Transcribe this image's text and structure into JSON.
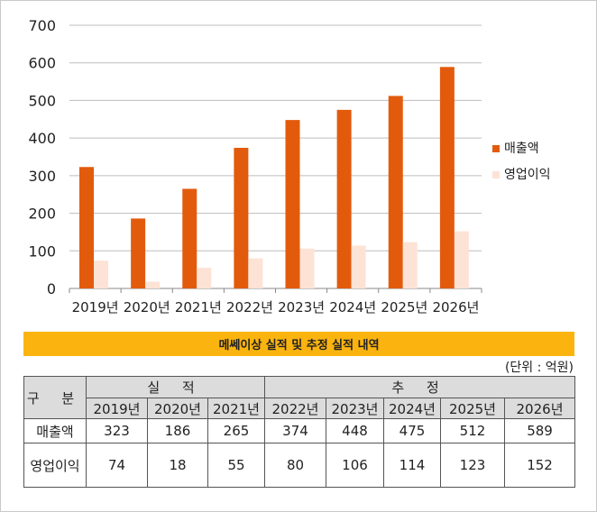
{
  "chart_data": {
    "type": "bar",
    "categories": [
      "2019년",
      "2020년",
      "2021년",
      "2022년",
      "2023년",
      "2024년",
      "2025년",
      "2026년"
    ],
    "series": [
      {
        "name": "매출액",
        "color": "#e25b0d",
        "values": [
          323,
          186,
          265,
          374,
          448,
          475,
          512,
          589
        ]
      },
      {
        "name": "영업이익",
        "color": "#fde3d6",
        "values": [
          74,
          18,
          55,
          80,
          106,
          114,
          123,
          152
        ]
      }
    ],
    "yticks": [
      0,
      100,
      200,
      300,
      400,
      500,
      600,
      700
    ],
    "ylim": [
      0,
      700
    ],
    "grid": true,
    "legend": "right"
  },
  "table": {
    "title": "메쎄이상 실적 및 추정 실적 내역",
    "unit": "(단위 : 억원)",
    "row_header": "구 분",
    "group_actual": "실 적",
    "group_forecast": "추 정",
    "years": [
      "2019년",
      "2020년",
      "2021년",
      "2022년",
      "2023년",
      "2024년",
      "2025년",
      "2026년"
    ],
    "rows": [
      {
        "label": "매출액",
        "values": [
          "323",
          "186",
          "265",
          "374",
          "448",
          "475",
          "512",
          "589"
        ]
      },
      {
        "label": "영업이익",
        "values": [
          "74",
          "18",
          "55",
          "80",
          "106",
          "114",
          "123",
          "152"
        ]
      }
    ]
  }
}
